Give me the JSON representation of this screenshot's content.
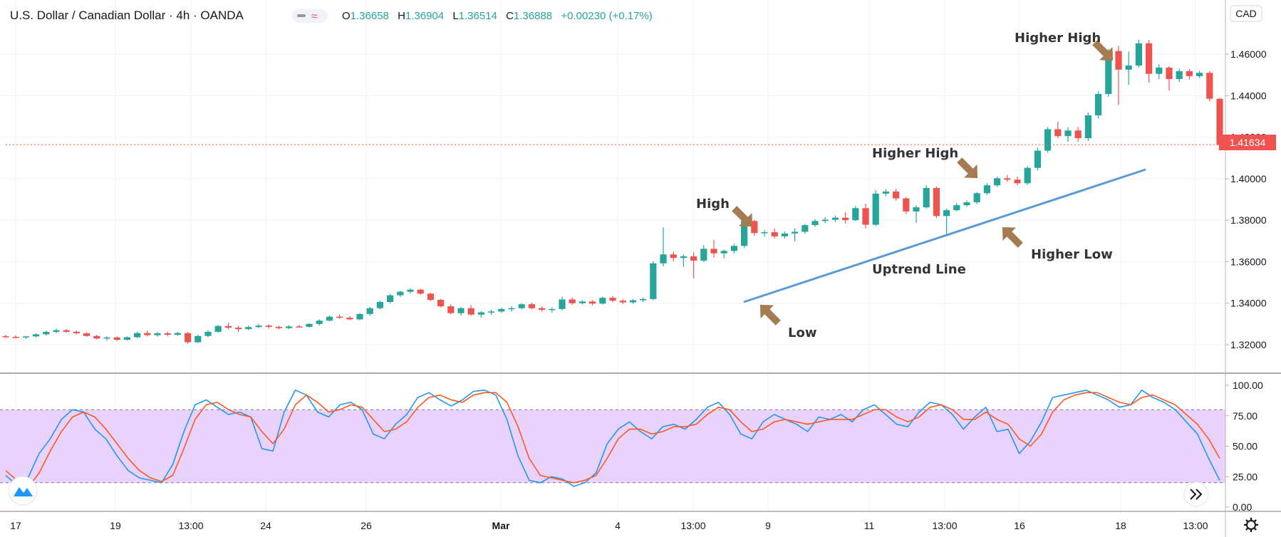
{
  "header": {
    "symbol": "U.S. Dollar / Canadian Dollar",
    "interval": "4h",
    "source": "OANDA",
    "ohlc": [
      {
        "k": "O",
        "v": "1.36658"
      },
      {
        "k": "H",
        "v": "1.36904"
      },
      {
        "k": "L",
        "v": "1.36514"
      },
      {
        "k": "C",
        "v": "1.36888"
      }
    ],
    "change": "+0.00230 (+0.17%)"
  },
  "price_axis": {
    "currency": "CAD",
    "ticks": [
      "1.46000",
      "1.44000",
      "1.42000",
      "1.40000",
      "1.38000",
      "1.36000",
      "1.34000",
      "1.32000"
    ],
    "last_price": "1.41634"
  },
  "osc_axis": {
    "ticks": [
      "100.00",
      "75.00",
      "50.00",
      "25.00",
      "0.00"
    ]
  },
  "time_axis": {
    "ticks": [
      "17",
      "19",
      "13:00",
      "24",
      "26",
      "Mar",
      "4",
      "13:00",
      "9",
      "11",
      "13:00",
      "16",
      "18",
      "13:00"
    ]
  },
  "annotations": [
    "Higher High",
    "Higher High",
    "High",
    "Low",
    "Higher Low",
    "Uptrend Line"
  ],
  "colors": {
    "up": "#26a69a",
    "down": "#ef5350",
    "trendline": "#5b9bd5",
    "arrow": "#a57c52",
    "k_line": "#2196f3",
    "d_line": "#ff5722",
    "band": "#e1c4fb",
    "last_price_bg": "#ef5350"
  },
  "icons": {
    "logo": "tradingview-logo-icon",
    "scroll": "double-chevron-right-icon",
    "settings": "gear-icon",
    "indicator": "wave-icon"
  },
  "chart_data": [
    {
      "type": "candlestick",
      "title": "U.S. Dollar / Canadian Dollar · 4h · OANDA",
      "ylim": [
        1.31,
        1.47
      ],
      "candles": [
        [
          1.3241,
          1.3248,
          1.3232,
          1.3238
        ],
        [
          1.3238,
          1.3245,
          1.323,
          1.3235
        ],
        [
          1.3235,
          1.3243,
          1.3228,
          1.324
        ],
        [
          1.324,
          1.3255,
          1.3235,
          1.325
        ],
        [
          1.325,
          1.3268,
          1.3244,
          1.3262
        ],
        [
          1.3262,
          1.3278,
          1.3255,
          1.327
        ],
        [
          1.327,
          1.3275,
          1.3258,
          1.3262
        ],
        [
          1.3262,
          1.3268,
          1.325,
          1.3255
        ],
        [
          1.3255,
          1.326,
          1.3238,
          1.3242
        ],
        [
          1.3242,
          1.3248,
          1.3225,
          1.323
        ],
        [
          1.323,
          1.324,
          1.322,
          1.3235
        ],
        [
          1.3235,
          1.324,
          1.3218,
          1.3224
        ],
        [
          1.3224,
          1.324,
          1.322,
          1.3236
        ],
        [
          1.3236,
          1.3262,
          1.3232,
          1.3256
        ],
        [
          1.3256,
          1.3268,
          1.324,
          1.3246
        ],
        [
          1.3246,
          1.3262,
          1.3238,
          1.3255
        ],
        [
          1.3255,
          1.3262,
          1.324,
          1.3248
        ],
        [
          1.3248,
          1.3262,
          1.3242,
          1.3256
        ],
        [
          1.3256,
          1.3262,
          1.3205,
          1.3212
        ],
        [
          1.3212,
          1.3248,
          1.3208,
          1.3242
        ],
        [
          1.3242,
          1.327,
          1.3236,
          1.3262
        ],
        [
          1.3262,
          1.3295,
          1.3258,
          1.329
        ],
        [
          1.329,
          1.3305,
          1.3275,
          1.3282
        ],
        [
          1.3282,
          1.3292,
          1.3262,
          1.3275
        ],
        [
          1.3275,
          1.3292,
          1.327,
          1.3285
        ],
        [
          1.3285,
          1.33,
          1.328,
          1.3292
        ],
        [
          1.3292,
          1.3298,
          1.3278,
          1.3286
        ],
        [
          1.3286,
          1.3292,
          1.3274,
          1.328
        ],
        [
          1.328,
          1.3294,
          1.3276,
          1.3288
        ],
        [
          1.3288,
          1.3296,
          1.3282,
          1.3286
        ],
        [
          1.3286,
          1.3305,
          1.3282,
          1.33
        ],
        [
          1.33,
          1.3322,
          1.3292,
          1.3316
        ],
        [
          1.3316,
          1.334,
          1.3312,
          1.3335
        ],
        [
          1.3335,
          1.3345,
          1.3325,
          1.333
        ],
        [
          1.333,
          1.3338,
          1.3318,
          1.3322
        ],
        [
          1.3322,
          1.3352,
          1.3318,
          1.3348
        ],
        [
          1.3348,
          1.3382,
          1.334,
          1.3376
        ],
        [
          1.3376,
          1.3412,
          1.337,
          1.3406
        ],
        [
          1.3406,
          1.3445,
          1.34,
          1.3438
        ],
        [
          1.3438,
          1.346,
          1.343,
          1.3455
        ],
        [
          1.3455,
          1.3472,
          1.3448,
          1.3465
        ],
        [
          1.3465,
          1.347,
          1.344,
          1.3446
        ],
        [
          1.3446,
          1.345,
          1.341,
          1.3416
        ],
        [
          1.3416,
          1.342,
          1.338,
          1.3385
        ],
        [
          1.3385,
          1.3395,
          1.3345,
          1.3352
        ],
        [
          1.3352,
          1.3382,
          1.334,
          1.3376
        ],
        [
          1.3376,
          1.339,
          1.334,
          1.3345
        ],
        [
          1.3345,
          1.3362,
          1.333,
          1.3356
        ],
        [
          1.3356,
          1.3368,
          1.3344,
          1.336
        ],
        [
          1.336,
          1.3378,
          1.3354,
          1.3372
        ],
        [
          1.3372,
          1.3385,
          1.336,
          1.3376
        ],
        [
          1.3376,
          1.34,
          1.337,
          1.3395
        ],
        [
          1.3395,
          1.3402,
          1.337,
          1.3376
        ],
        [
          1.3376,
          1.3385,
          1.336,
          1.3368
        ],
        [
          1.3368,
          1.338,
          1.3355,
          1.3372
        ],
        [
          1.3372,
          1.3432,
          1.3366,
          1.3418
        ],
        [
          1.3418,
          1.3428,
          1.3392,
          1.34
        ],
        [
          1.34,
          1.3414,
          1.3395,
          1.3408
        ],
        [
          1.3408,
          1.3415,
          1.339,
          1.3398
        ],
        [
          1.3398,
          1.3432,
          1.3394,
          1.3426
        ],
        [
          1.3426,
          1.3435,
          1.3405,
          1.3412
        ],
        [
          1.3412,
          1.342,
          1.3396,
          1.3404
        ],
        [
          1.3404,
          1.342,
          1.3398,
          1.3414
        ],
        [
          1.3414,
          1.3428,
          1.3405,
          1.342
        ],
        [
          1.342,
          1.3602,
          1.3415,
          1.3592
        ],
        [
          1.3592,
          1.3765,
          1.3578,
          1.3635
        ],
        [
          1.3635,
          1.3648,
          1.3602,
          1.3618
        ],
        [
          1.3618,
          1.3635,
          1.3575,
          1.3626
        ],
        [
          1.3626,
          1.3645,
          1.352,
          1.3605
        ],
        [
          1.3605,
          1.368,
          1.3598,
          1.3662
        ],
        [
          1.3662,
          1.3705,
          1.362,
          1.364
        ],
        [
          1.364,
          1.3658,
          1.3616,
          1.3652
        ],
        [
          1.3652,
          1.3685,
          1.364,
          1.3676
        ],
        [
          1.3676,
          1.3808,
          1.3668,
          1.3796
        ],
        [
          1.3796,
          1.3802,
          1.3725,
          1.3738
        ],
        [
          1.3738,
          1.3752,
          1.3722,
          1.3742
        ],
        [
          1.3742,
          1.376,
          1.3712,
          1.3722
        ],
        [
          1.3722,
          1.3745,
          1.3712,
          1.3736
        ],
        [
          1.3736,
          1.376,
          1.3698,
          1.3744
        ],
        [
          1.3744,
          1.3782,
          1.3735,
          1.3776
        ],
        [
          1.3776,
          1.3805,
          1.3768,
          1.3796
        ],
        [
          1.3796,
          1.3815,
          1.3786,
          1.3802
        ],
        [
          1.3802,
          1.3822,
          1.379,
          1.3812
        ],
        [
          1.3812,
          1.3838,
          1.3784,
          1.38
        ],
        [
          1.38,
          1.3868,
          1.3796,
          1.3858
        ],
        [
          1.3858,
          1.388,
          1.376,
          1.3778
        ],
        [
          1.3778,
          1.3945,
          1.3772,
          1.3928
        ],
        [
          1.3928,
          1.3948,
          1.3915,
          1.3938
        ],
        [
          1.3938,
          1.395,
          1.3895,
          1.3905
        ],
        [
          1.3905,
          1.3912,
          1.383,
          1.3842
        ],
        [
          1.3842,
          1.3872,
          1.3788,
          1.3862
        ],
        [
          1.3862,
          1.3968,
          1.3856,
          1.3955
        ],
        [
          1.3955,
          1.3962,
          1.381,
          1.382
        ],
        [
          1.382,
          1.3855,
          1.373,
          1.3848
        ],
        [
          1.3848,
          1.3882,
          1.3842,
          1.3872
        ],
        [
          1.3872,
          1.3895,
          1.3865,
          1.3886
        ],
        [
          1.3886,
          1.3935,
          1.3878,
          1.393
        ],
        [
          1.393,
          1.3978,
          1.3922,
          1.3968
        ],
        [
          1.3968,
          1.401,
          1.396,
          1.4002
        ],
        [
          1.4002,
          1.4018,
          1.3985,
          1.3995
        ],
        [
          1.3995,
          1.401,
          1.3968,
          1.3978
        ],
        [
          1.3978,
          1.406,
          1.397,
          1.4052
        ],
        [
          1.4052,
          1.415,
          1.404,
          1.4135
        ],
        [
          1.4135,
          1.4248,
          1.4125,
          1.4238
        ],
        [
          1.4238,
          1.4275,
          1.4195,
          1.4205
        ],
        [
          1.4205,
          1.4248,
          1.4178,
          1.4232
        ],
        [
          1.4232,
          1.4248,
          1.4178,
          1.4195
        ],
        [
          1.4195,
          1.4318,
          1.4182,
          1.4305
        ],
        [
          1.4305,
          1.442,
          1.429,
          1.4408
        ],
        [
          1.4408,
          1.4625,
          1.4395,
          1.4615
        ],
        [
          1.4615,
          1.464,
          1.4355,
          1.4525
        ],
        [
          1.4525,
          1.4612,
          1.4452,
          1.4545
        ],
        [
          1.4545,
          1.467,
          1.4535,
          1.4652
        ],
        [
          1.4652,
          1.4668,
          1.4462,
          1.4505
        ],
        [
          1.4505,
          1.455,
          1.448,
          1.4535
        ],
        [
          1.4535,
          1.4542,
          1.4425,
          1.448
        ],
        [
          1.448,
          1.453,
          1.4465,
          1.4518
        ],
        [
          1.4518,
          1.4528,
          1.4478,
          1.4494
        ],
        [
          1.4494,
          1.452,
          1.4484,
          1.451
        ],
        [
          1.451,
          1.4518,
          1.4372,
          1.4385
        ],
        [
          1.4385,
          1.439,
          1.415,
          1.4163
        ]
      ],
      "last": 1.41634
    },
    {
      "type": "line",
      "ylim": [
        0,
        100
      ],
      "band": [
        20,
        80
      ],
      "series": [
        {
          "key": "k",
          "values": [
            26,
            18,
            24,
            44,
            56,
            72,
            80,
            78,
            64,
            56,
            42,
            30,
            24,
            22,
            20,
            35,
            62,
            84,
            88,
            82,
            76,
            78,
            74,
            48,
            46,
            78,
            96,
            92,
            78,
            74,
            84,
            86,
            80,
            60,
            56,
            68,
            76,
            90,
            94,
            88,
            83,
            88,
            95,
            96,
            92,
            72,
            42,
            22,
            20,
            25,
            23,
            17,
            20,
            28,
            52,
            64,
            70,
            62,
            56,
            66,
            68,
            64,
            72,
            82,
            86,
            76,
            60,
            56,
            70,
            76,
            72,
            68,
            62,
            74,
            72,
            76,
            70,
            80,
            84,
            76,
            68,
            66,
            78,
            86,
            84,
            76,
            64,
            74,
            82,
            62,
            64,
            44,
            54,
            70,
            90,
            92,
            94,
            96,
            92,
            88,
            82,
            84,
            96,
            90,
            86,
            80,
            70,
            60,
            40,
            22
          ]
        },
        {
          "key": "d",
          "values": [
            30,
            22,
            16,
            28,
            46,
            62,
            74,
            78,
            74,
            64,
            52,
            40,
            30,
            24,
            21,
            26,
            48,
            72,
            84,
            86,
            80,
            76,
            74,
            62,
            52,
            64,
            84,
            92,
            86,
            78,
            80,
            84,
            82,
            72,
            62,
            64,
            70,
            82,
            90,
            92,
            88,
            86,
            92,
            94,
            94,
            86,
            66,
            40,
            26,
            24,
            22,
            20,
            22,
            26,
            40,
            56,
            64,
            64,
            60,
            62,
            66,
            66,
            68,
            76,
            82,
            80,
            70,
            62,
            64,
            70,
            72,
            70,
            68,
            70,
            72,
            72,
            72,
            76,
            80,
            80,
            74,
            70,
            74,
            82,
            84,
            80,
            72,
            72,
            78,
            72,
            68,
            56,
            50,
            60,
            78,
            88,
            92,
            94,
            94,
            90,
            86,
            84,
            90,
            92,
            88,
            84,
            76,
            68,
            56,
            40
          ]
        }
      ]
    }
  ]
}
